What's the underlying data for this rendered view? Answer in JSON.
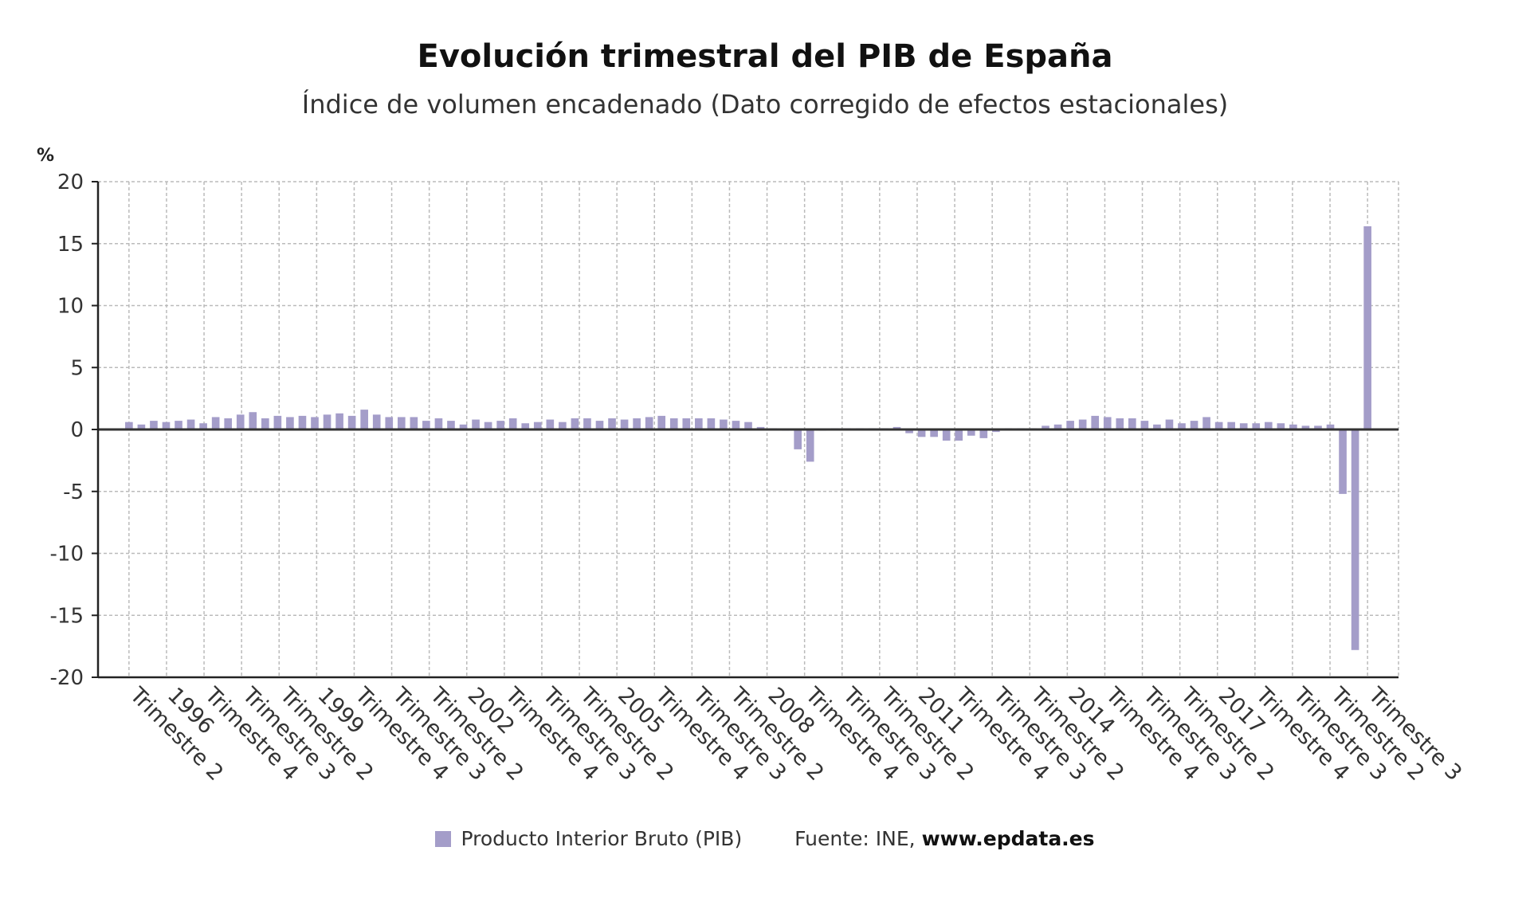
{
  "header": {
    "title": "Evolución trimestral del PIB de España",
    "subtitle": "Índice de volumen encadenado (Dato corregido de efectos estacionales)"
  },
  "footer": {
    "legend_label": "Producto Interior Bruto (PIB)",
    "source_prefix": "Fuente: INE, ",
    "source_site": "www.epdata.es"
  },
  "colors": {
    "bar": "#a49dc9",
    "zero_line": "#333333",
    "grid": "#bbbbbb"
  },
  "chart_data": {
    "type": "bar",
    "title": "Evolución trimestral del PIB de España",
    "subtitle": "Índice de volumen encadenado (Dato corregido de efectos estacionales)",
    "ylabel": "%",
    "ylim": [
      -20,
      20
    ],
    "yticks": [
      20,
      15,
      10,
      5,
      0,
      -5,
      -10,
      -15,
      -20
    ],
    "grid": true,
    "legend_position": "bottom",
    "x_tick_labels": [
      "Trimestre 2",
      "1996",
      "Trimestre 4",
      "Trimestre 3",
      "Trimestre 2",
      "1999",
      "Trimestre 4",
      "Trimestre 3",
      "Trimestre 2",
      "2002",
      "Trimestre 4",
      "Trimestre 3",
      "Trimestre 2",
      "2005",
      "Trimestre 4",
      "Trimestre 3",
      "Trimestre 2",
      "2008",
      "Trimestre 4",
      "Trimestre 3",
      "Trimestre 2",
      "2011",
      "Trimestre 4",
      "Trimestre 3",
      "Trimestre 2",
      "2014",
      "Trimestre 4",
      "Trimestre 3",
      "Trimestre 2",
      "2017",
      "Trimestre 4",
      "Trimestre 3",
      "Trimestre 2",
      "Trimestre 3"
    ],
    "series": [
      {
        "name": "Producto Interior Bruto (PIB)",
        "color": "#a49dc9",
        "values": [
          0.6,
          0.4,
          0.7,
          0.6,
          0.7,
          0.8,
          0.5,
          1.0,
          0.9,
          1.2,
          1.4,
          0.9,
          1.1,
          1.0,
          1.1,
          1.0,
          1.2,
          1.3,
          1.1,
          1.6,
          1.2,
          1.0,
          1.0,
          1.0,
          0.7,
          0.9,
          0.7,
          0.4,
          0.8,
          0.6,
          0.7,
          0.9,
          0.5,
          0.6,
          0.8,
          0.6,
          0.9,
          0.9,
          0.7,
          0.9,
          0.8,
          0.9,
          1.0,
          1.1,
          0.9,
          0.9,
          0.9,
          0.9,
          0.8,
          0.7,
          0.6,
          0.2,
          0.1,
          -0.1,
          -1.6,
          -2.6,
          -0.1,
          0.1,
          0.1,
          0.1,
          0.1,
          0.1,
          0.2,
          -0.3,
          -0.6,
          -0.6,
          -0.9,
          -0.9,
          -0.5,
          -0.7,
          -0.2,
          0.1,
          0.1,
          0.1,
          0.3,
          0.4,
          0.7,
          0.8,
          1.1,
          1.0,
          0.9,
          0.9,
          0.7,
          0.4,
          0.8,
          0.5,
          0.7,
          1.0,
          0.6,
          0.6,
          0.5,
          0.5,
          0.6,
          0.5,
          0.4,
          0.3,
          0.3,
          0.4,
          -5.2,
          -17.8,
          16.4
        ]
      }
    ]
  }
}
